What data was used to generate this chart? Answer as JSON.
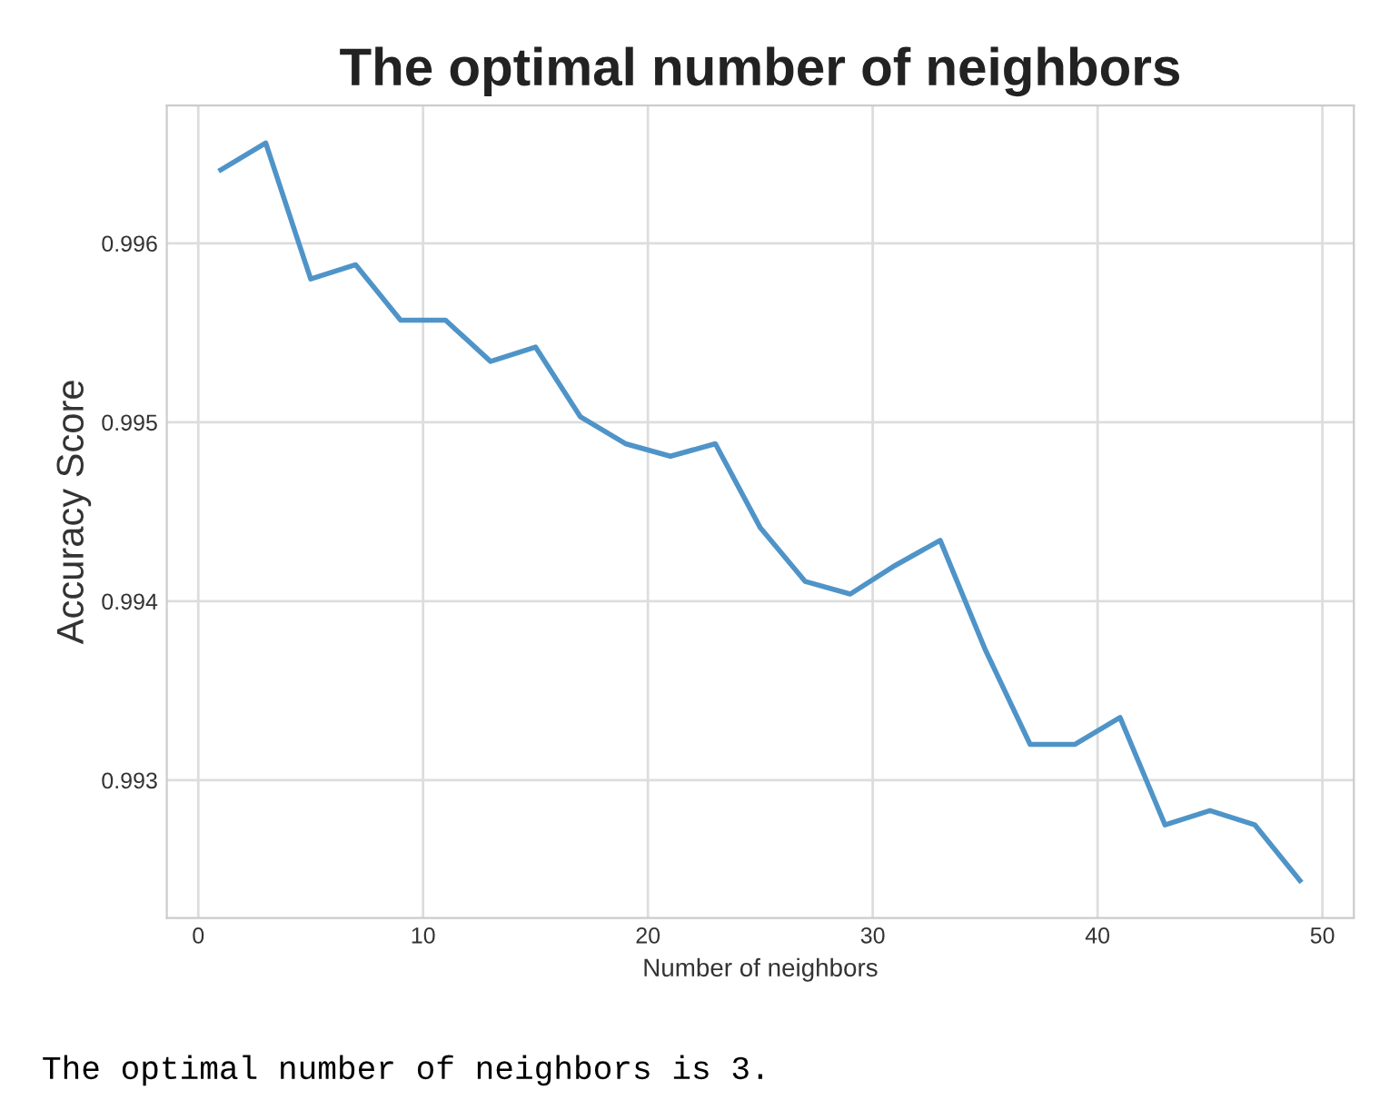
{
  "chart_data": {
    "type": "line",
    "title": "The optimal number of neighbors",
    "xlabel": "Number of neighbors",
    "ylabel": "Accuracy Score",
    "x": [
      1,
      3,
      5,
      7,
      9,
      11,
      13,
      15,
      17,
      19,
      21,
      23,
      25,
      27,
      29,
      31,
      33,
      35,
      37,
      39,
      41,
      43,
      45,
      47,
      49
    ],
    "series": [
      {
        "color": "#4f94c8",
        "values": [
          0.99641,
          0.99656,
          0.9958,
          0.99588,
          0.99557,
          0.99557,
          0.99534,
          0.99542,
          0.99503,
          0.99488,
          0.99481,
          0.99488,
          0.99441,
          0.99411,
          0.99404,
          0.9942,
          0.99434,
          0.99373,
          0.9932,
          0.9932,
          0.99335,
          0.99275,
          0.99283,
          0.99275,
          0.99244
        ]
      }
    ],
    "xlim": [
      -1.4,
      51.4
    ],
    "xticks": [
      0,
      10,
      20,
      30,
      40,
      50
    ],
    "ylim": [
      0.99223,
      0.99677
    ],
    "yticks": [
      0.993,
      0.994,
      0.995,
      0.996
    ],
    "grid": true,
    "legend": false,
    "marker": "none",
    "line_style": "solid",
    "annotations": [
      "The optimal number of neighbors is 3."
    ]
  }
}
